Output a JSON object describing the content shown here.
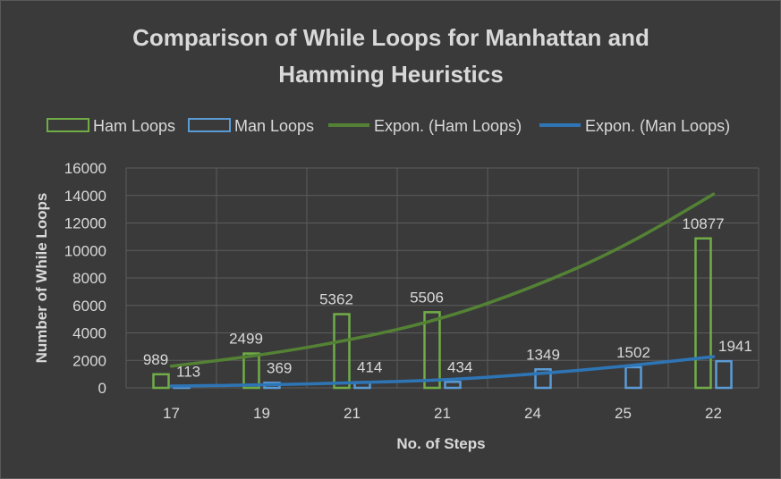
{
  "chart_data": {
    "type": "bar",
    "title_line1": "Comparison of While Loops for Manhattan and",
    "title_line2": "Hamming Heuristics",
    "xlabel": "No. of Steps",
    "ylabel": "Number of While Loops",
    "categories": [
      "17",
      "19",
      "21",
      "21",
      "24",
      "25",
      "22"
    ],
    "ylim": [
      0,
      16000
    ],
    "yticks": [
      0,
      2000,
      4000,
      6000,
      8000,
      10000,
      12000,
      14000,
      16000
    ],
    "grid": true,
    "legend_position": "top",
    "series": [
      {
        "name": "Ham Loops",
        "values": [
          989,
          2499,
          5362,
          5506,
          null,
          null,
          10877
        ],
        "color": "#70ad47"
      },
      {
        "name": "Man Loops",
        "values": [
          113,
          369,
          414,
          434,
          1349,
          1502,
          1941
        ],
        "color": "#5b9bd5"
      }
    ],
    "trendlines": [
      {
        "name": "Expon. (Ham Loops)",
        "color": "#548235",
        "values": [
          1580,
          2380,
          3500,
          5000,
          7300,
          10200,
          14100
        ]
      },
      {
        "name": "Expon. (Man Loops)",
        "color": "#2e75b6",
        "values": [
          130,
          210,
          360,
          560,
          990,
          1550,
          2270
        ]
      }
    ]
  }
}
